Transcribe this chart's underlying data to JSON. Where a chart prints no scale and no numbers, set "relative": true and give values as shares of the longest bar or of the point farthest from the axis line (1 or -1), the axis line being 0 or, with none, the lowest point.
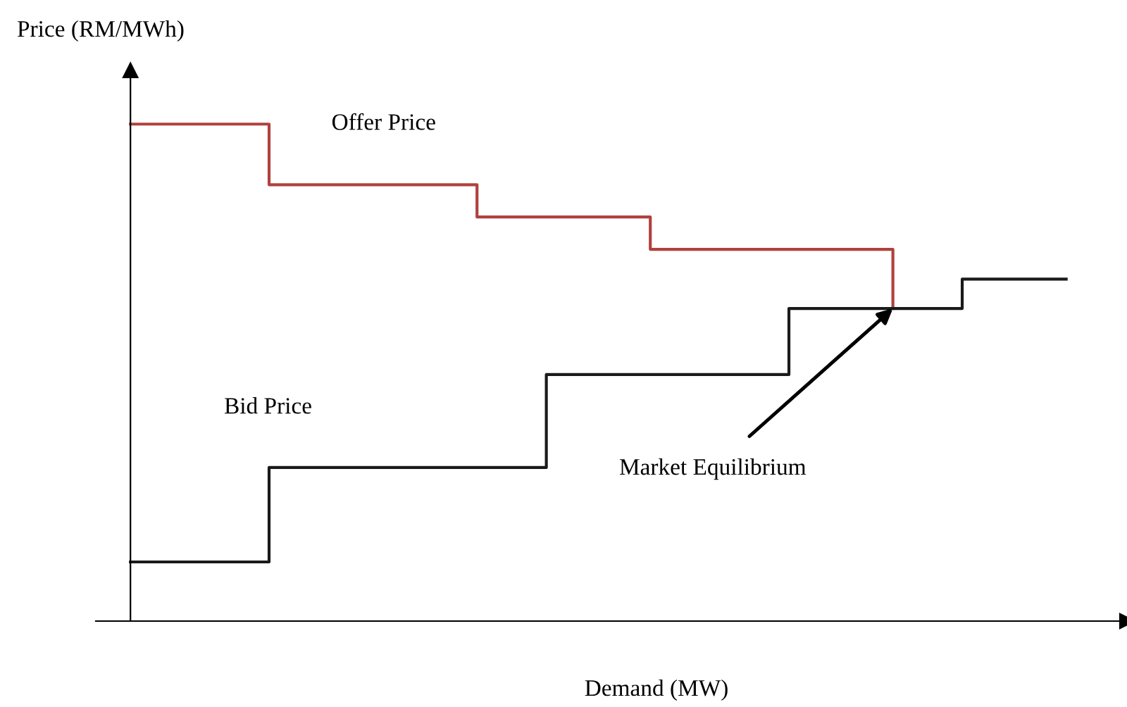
{
  "chart_data": {
    "type": "step",
    "relative": true,
    "xlabel": "Demand (MW)",
    "ylabel": "Price (RM/MWh)",
    "categories": [
      null,
      null,
      null,
      null,
      null,
      null,
      null,
      null,
      null,
      null,
      null,
      null,
      null,
      null,
      null,
      null,
      null,
      null,
      null,
      null,
      null,
      null,
      null,
      null,
      null,
      null,
      null,
      null
    ],
    "series": [
      {
        "name": "Offer Price",
        "color": "#b0413e",
        "values": [
          1,
          1,
          1,
          1,
          0.878,
          0.878,
          0.878,
          0.878,
          0.878,
          0.878,
          0.813,
          0.813,
          0.813,
          0.813,
          0.813,
          0.748,
          0.748,
          0.748,
          0.748,
          0.748,
          0.748,
          0.748,
          0.629,
          null,
          null,
          null,
          null,
          null
        ]
      },
      {
        "name": "Bid Price",
        "color": "#1a1a1a",
        "values": [
          0.119,
          0.119,
          0.119,
          0.119,
          0.309,
          0.309,
          0.309,
          0.309,
          0.309,
          0.309,
          0.309,
          0.309,
          0.496,
          0.496,
          0.496,
          0.496,
          0.496,
          0.496,
          0.496,
          0.629,
          0.629,
          0.629,
          0.629,
          0.629,
          0.688,
          0.688,
          0.688,
          0.688
        ]
      }
    ],
    "annotations": [
      "Market Equilibrium"
    ]
  }
}
